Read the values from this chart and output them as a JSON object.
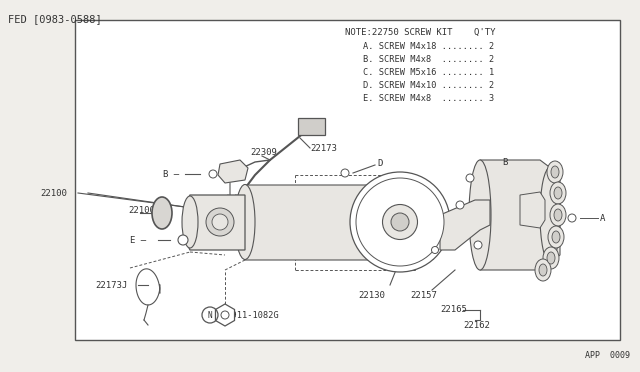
{
  "bg_color": "#f0eeea",
  "border_color": "#555555",
  "line_color": "#555555",
  "fill_light": "#e8e6e2",
  "fill_white": "#ffffff",
  "text_color": "#333333",
  "title_text": "FED [0983-0588]",
  "page_ref": "APP  0009",
  "note_title": "NOTE:22750 SCREW KIT    Q'TY",
  "note_items": [
    "A. SCREW M4x18 ........ 2",
    "B. SCREW M4x8  ........ 2",
    "C. SCREW M5x16 ........ 1",
    "D. SCREW M4x10 ........ 2",
    "E. SCREW M4x8  ........ 3"
  ]
}
